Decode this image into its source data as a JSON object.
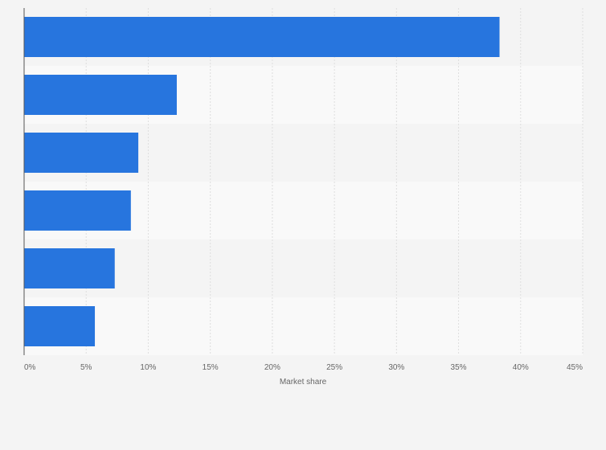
{
  "chart_data": {
    "type": "bar",
    "orientation": "horizontal",
    "categories": [
      "",
      "",
      "",
      "",
      "",
      ""
    ],
    "values": [
      38.3,
      12.3,
      9.2,
      8.6,
      7.3,
      5.7
    ],
    "xlabel": "Market share",
    "ylabel": "",
    "xlim": [
      0,
      45
    ],
    "xticks": [
      0,
      5,
      10,
      15,
      20,
      25,
      30,
      35,
      40,
      45
    ],
    "xtick_labels": [
      "0%",
      "5%",
      "10%",
      "15%",
      "20%",
      "25%",
      "30%",
      "35%",
      "40%",
      "45%"
    ],
    "grid": true,
    "legend": "none",
    "bar_color": "#2775de",
    "band_colors": [
      "#f4f4f4",
      "#f9f9f9"
    ]
  }
}
